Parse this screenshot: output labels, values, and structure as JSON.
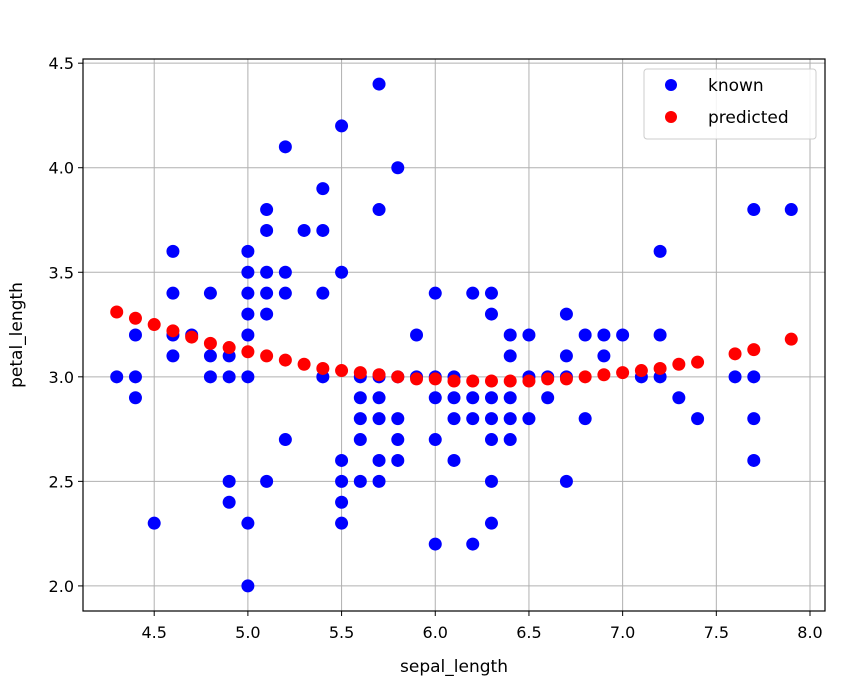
{
  "chart_data": {
    "type": "scatter",
    "title": "",
    "xlabel": "sepal_length",
    "ylabel": "petal_length",
    "xlim": [
      4.12,
      8.08
    ],
    "ylim": [
      1.88,
      4.52
    ],
    "grid": true,
    "legend_position": "top-right",
    "x_ticks": [
      "4.5",
      "5.0",
      "5.5",
      "6.0",
      "6.5",
      "7.0",
      "7.5",
      "8.0"
    ],
    "y_ticks": [
      "2.0",
      "2.5",
      "3.0",
      "3.5",
      "4.0",
      "4.5"
    ],
    "series": [
      {
        "name": "known",
        "color": "#0000ff",
        "points": [
          [
            4.3,
            3.0
          ],
          [
            4.4,
            3.2
          ],
          [
            4.4,
            3.0
          ],
          [
            4.4,
            2.9
          ],
          [
            4.5,
            2.3
          ],
          [
            4.6,
            3.6
          ],
          [
            4.6,
            3.4
          ],
          [
            4.6,
            3.2
          ],
          [
            4.6,
            3.1
          ],
          [
            4.7,
            3.2
          ],
          [
            4.8,
            3.4
          ],
          [
            4.8,
            3.1
          ],
          [
            4.8,
            3.0
          ],
          [
            4.9,
            3.1
          ],
          [
            4.9,
            3.0
          ],
          [
            4.9,
            2.5
          ],
          [
            4.9,
            2.4
          ],
          [
            5.0,
            3.6
          ],
          [
            5.0,
            3.5
          ],
          [
            5.0,
            3.4
          ],
          [
            5.0,
            3.3
          ],
          [
            5.0,
            3.2
          ],
          [
            5.0,
            3.0
          ],
          [
            5.0,
            2.3
          ],
          [
            5.0,
            2.0
          ],
          [
            5.1,
            3.8
          ],
          [
            5.1,
            3.7
          ],
          [
            5.1,
            3.5
          ],
          [
            5.1,
            3.4
          ],
          [
            5.1,
            3.3
          ],
          [
            5.1,
            2.5
          ],
          [
            5.2,
            4.1
          ],
          [
            5.2,
            3.5
          ],
          [
            5.2,
            3.4
          ],
          [
            5.2,
            2.7
          ],
          [
            5.3,
            3.7
          ],
          [
            5.4,
            3.9
          ],
          [
            5.4,
            3.7
          ],
          [
            5.4,
            3.4
          ],
          [
            5.4,
            3.0
          ],
          [
            5.5,
            4.2
          ],
          [
            5.5,
            3.5
          ],
          [
            5.5,
            2.6
          ],
          [
            5.5,
            2.5
          ],
          [
            5.5,
            2.4
          ],
          [
            5.5,
            2.3
          ],
          [
            5.6,
            3.0
          ],
          [
            5.6,
            2.9
          ],
          [
            5.6,
            2.8
          ],
          [
            5.6,
            2.7
          ],
          [
            5.6,
            2.5
          ],
          [
            5.7,
            4.4
          ],
          [
            5.7,
            3.8
          ],
          [
            5.7,
            3.0
          ],
          [
            5.7,
            2.9
          ],
          [
            5.7,
            2.8
          ],
          [
            5.7,
            2.6
          ],
          [
            5.7,
            2.5
          ],
          [
            5.8,
            4.0
          ],
          [
            5.8,
            3.0
          ],
          [
            5.8,
            2.8
          ],
          [
            5.8,
            2.7
          ],
          [
            5.8,
            2.6
          ],
          [
            5.9,
            3.2
          ],
          [
            5.9,
            3.0
          ],
          [
            6.0,
            3.4
          ],
          [
            6.0,
            3.0
          ],
          [
            6.0,
            2.9
          ],
          [
            6.0,
            2.7
          ],
          [
            6.0,
            2.2
          ],
          [
            6.1,
            3.0
          ],
          [
            6.1,
            2.9
          ],
          [
            6.1,
            2.8
          ],
          [
            6.1,
            2.6
          ],
          [
            6.2,
            3.4
          ],
          [
            6.2,
            2.9
          ],
          [
            6.2,
            2.8
          ],
          [
            6.2,
            2.2
          ],
          [
            6.3,
            3.4
          ],
          [
            6.3,
            3.3
          ],
          [
            6.3,
            2.9
          ],
          [
            6.3,
            2.8
          ],
          [
            6.3,
            2.7
          ],
          [
            6.3,
            2.5
          ],
          [
            6.3,
            2.3
          ],
          [
            6.4,
            3.2
          ],
          [
            6.4,
            3.1
          ],
          [
            6.4,
            2.9
          ],
          [
            6.4,
            2.8
          ],
          [
            6.4,
            2.7
          ],
          [
            6.5,
            3.2
          ],
          [
            6.5,
            3.0
          ],
          [
            6.5,
            2.8
          ],
          [
            6.6,
            3.0
          ],
          [
            6.6,
            2.9
          ],
          [
            6.7,
            3.3
          ],
          [
            6.7,
            3.1
          ],
          [
            6.7,
            3.0
          ],
          [
            6.7,
            2.5
          ],
          [
            6.8,
            3.2
          ],
          [
            6.8,
            2.8
          ],
          [
            6.9,
            3.2
          ],
          [
            6.9,
            3.1
          ],
          [
            7.0,
            3.2
          ],
          [
            7.1,
            3.0
          ],
          [
            7.2,
            3.6
          ],
          [
            7.2,
            3.2
          ],
          [
            7.2,
            3.0
          ],
          [
            7.3,
            2.9
          ],
          [
            7.4,
            2.8
          ],
          [
            7.6,
            3.0
          ],
          [
            7.7,
            3.8
          ],
          [
            7.7,
            3.0
          ],
          [
            7.7,
            2.8
          ],
          [
            7.7,
            2.6
          ],
          [
            7.9,
            3.8
          ]
        ]
      },
      {
        "name": "predicted",
        "color": "#ff0000",
        "points": [
          [
            4.3,
            3.31
          ],
          [
            4.4,
            3.28
          ],
          [
            4.5,
            3.25
          ],
          [
            4.6,
            3.22
          ],
          [
            4.7,
            3.19
          ],
          [
            4.8,
            3.16
          ],
          [
            4.9,
            3.14
          ],
          [
            5.0,
            3.12
          ],
          [
            5.1,
            3.1
          ],
          [
            5.2,
            3.08
          ],
          [
            5.3,
            3.06
          ],
          [
            5.4,
            3.04
          ],
          [
            5.5,
            3.03
          ],
          [
            5.6,
            3.02
          ],
          [
            5.7,
            3.01
          ],
          [
            5.8,
            3.0
          ],
          [
            5.9,
            2.99
          ],
          [
            6.0,
            2.99
          ],
          [
            6.1,
            2.98
          ],
          [
            6.2,
            2.98
          ],
          [
            6.3,
            2.98
          ],
          [
            6.4,
            2.98
          ],
          [
            6.5,
            2.98
          ],
          [
            6.6,
            2.99
          ],
          [
            6.7,
            2.99
          ],
          [
            6.8,
            3.0
          ],
          [
            6.9,
            3.01
          ],
          [
            7.0,
            3.02
          ],
          [
            7.1,
            3.03
          ],
          [
            7.2,
            3.04
          ],
          [
            7.3,
            3.06
          ],
          [
            7.4,
            3.07
          ],
          [
            7.6,
            3.11
          ],
          [
            7.7,
            3.13
          ],
          [
            7.9,
            3.18
          ]
        ]
      }
    ]
  }
}
